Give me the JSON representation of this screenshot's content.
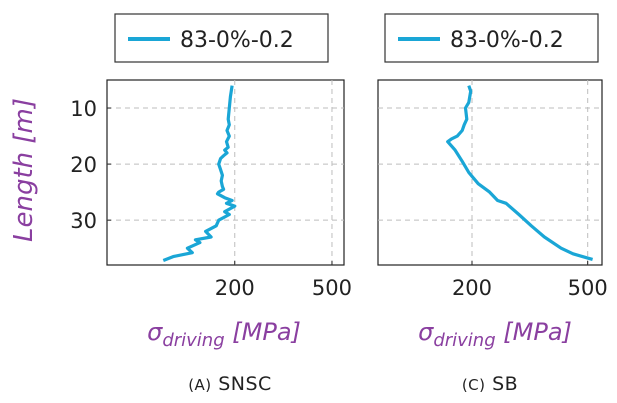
{
  "ylabel_main": "Length",
  "ylabel_unit": "m",
  "chart_data": [
    {
      "type": "line",
      "caption_prefix": "(A)",
      "caption_name": "SNSC",
      "xlabel_sym": "σ",
      "xlabel_sub": "driving",
      "xlabel_unit": "MPa",
      "legend": "83-0%-0.2",
      "line_color": "#1aa6d6",
      "x_axis_scale": "log",
      "xlim": [
        60,
        560
      ],
      "ylim": [
        38,
        5
      ],
      "xticks": [
        200,
        500
      ],
      "yticks": [
        10,
        20,
        30
      ],
      "grid": "dashed",
      "legend_position": "top",
      "series": [
        {
          "x": [
            195,
            192,
            190,
            188,
            190,
            186,
            190,
            185,
            188,
            182,
            186,
            180,
            175,
            172,
            175,
            178,
            176,
            178,
            180,
            172,
            170,
            182,
            195,
            185,
            200,
            182,
            190,
            172,
            168,
            152,
            160,
            138,
            144,
            128,
            134,
            112,
            102
          ],
          "y": [
            6,
            8,
            10,
            12,
            13,
            14,
            15,
            16,
            17,
            17.5,
            18,
            18.5,
            19,
            20,
            21,
            22,
            23,
            24,
            24.5,
            25,
            25.3,
            26,
            26.5,
            27,
            27.5,
            28.5,
            29,
            30,
            31,
            32,
            33,
            33.5,
            34,
            35,
            35.8,
            36.5,
            37.2
          ]
        }
      ]
    },
    {
      "type": "line",
      "caption_prefix": "(C)",
      "caption_name": "SB",
      "xlabel_sym": "σ",
      "xlabel_sub": "driving",
      "xlabel_unit": "MPa",
      "legend": "83-0%-0.2",
      "line_color": "#1aa6d6",
      "x_axis_scale": "log",
      "xlim": [
        95,
        560
      ],
      "ylim": [
        38,
        5
      ],
      "xticks": [
        200,
        500
      ],
      "yticks": [],
      "grid": "dashed",
      "legend_position": "top",
      "series": [
        {
          "x": [
            195,
            198,
            195,
            190,
            192,
            188,
            185,
            178,
            170,
            165,
            175,
            185,
            195,
            210,
            230,
            245,
            262,
            290,
            320,
            355,
            405,
            445,
            495,
            520
          ],
          "y": [
            6,
            7,
            9,
            10,
            12,
            13,
            14,
            15,
            15.5,
            16,
            17.5,
            19.5,
            21.5,
            23.5,
            25,
            26.5,
            27,
            29,
            31,
            33,
            35,
            36,
            36.7,
            37
          ]
        }
      ]
    }
  ]
}
